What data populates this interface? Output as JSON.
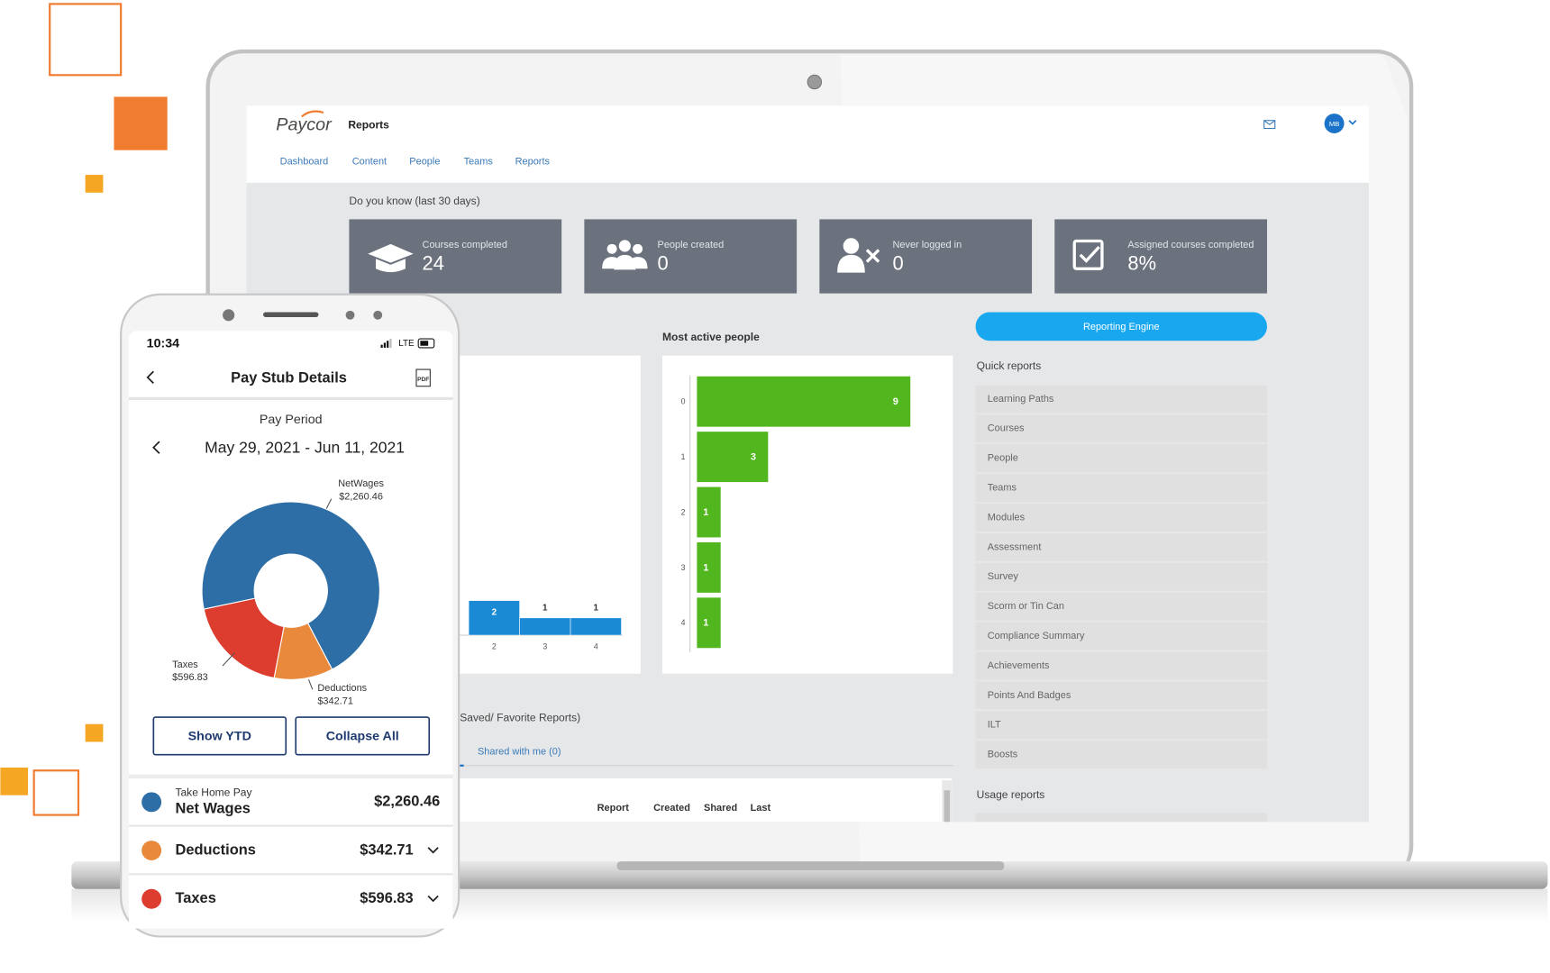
{
  "laptop": {
    "brand": "Paycor",
    "section": "Reports",
    "nav": [
      "Dashboard",
      "Content",
      "People",
      "Teams",
      "Reports"
    ],
    "avatar": "MB",
    "stats_heading": "Do you know (last 30 days)",
    "cards": [
      {
        "label": "Courses completed",
        "value": "24"
      },
      {
        "label": "People created",
        "value": "0"
      },
      {
        "label": "Never logged in",
        "value": "0"
      },
      {
        "label": "Assigned courses completed",
        "value": "8%"
      }
    ],
    "activity": {
      "type": "bar",
      "categories": [
        "2",
        "3",
        "4"
      ],
      "values": [
        2,
        1,
        1
      ],
      "color": "#1a8ad4"
    },
    "most_active": {
      "type": "bar",
      "title": "Most active people",
      "categories": [
        "0",
        "1",
        "2",
        "3",
        "4"
      ],
      "values": [
        9,
        3,
        1,
        1,
        1
      ],
      "color": "#52b71f"
    },
    "saved_reports": "Saved/ Favorite Reports)",
    "shared_tab": "Shared with me (0)",
    "table_headers": [
      "Report",
      "Created",
      "Shared",
      "Last"
    ],
    "reporting_engine": "Reporting Engine",
    "quick_reports_title": "Quick reports",
    "quick_reports": [
      "Learning Paths",
      "Courses",
      "People",
      "Teams",
      "Modules",
      "Assessment",
      "Survey",
      "Scorm or Tin Can",
      "Compliance Summary",
      "Achievements",
      "Points And Badges",
      "ILT",
      "Boosts"
    ],
    "usage_reports_title": "Usage reports"
  },
  "phone": {
    "time": "10:34",
    "network": "LTE",
    "title": "Pay Stub Details",
    "pdf": "PDF",
    "period_label": "Pay Period",
    "period": "May 29, 2021 - Jun 11, 2021",
    "donut": {
      "type": "pie",
      "slices": [
        {
          "name": "NetWages",
          "value": 2260.46,
          "value_label": "$2,260.46",
          "color": "#2e6ea6"
        },
        {
          "name": "Deductions",
          "value": 342.71,
          "value_label": "$342.71",
          "color": "#e8893c"
        },
        {
          "name": "Taxes",
          "value": 596.83,
          "value_label": "$596.83",
          "color": "#dc3d2e"
        }
      ]
    },
    "buttons": [
      "Show YTD",
      "Collapse All"
    ],
    "rows": [
      {
        "sub": "Take Home Pay",
        "name": "Net Wages",
        "amount": "$2,260.46"
      },
      {
        "name": "Deductions",
        "amount": "$342.71"
      },
      {
        "name": "Taxes",
        "amount": "$596.83"
      }
    ]
  }
}
